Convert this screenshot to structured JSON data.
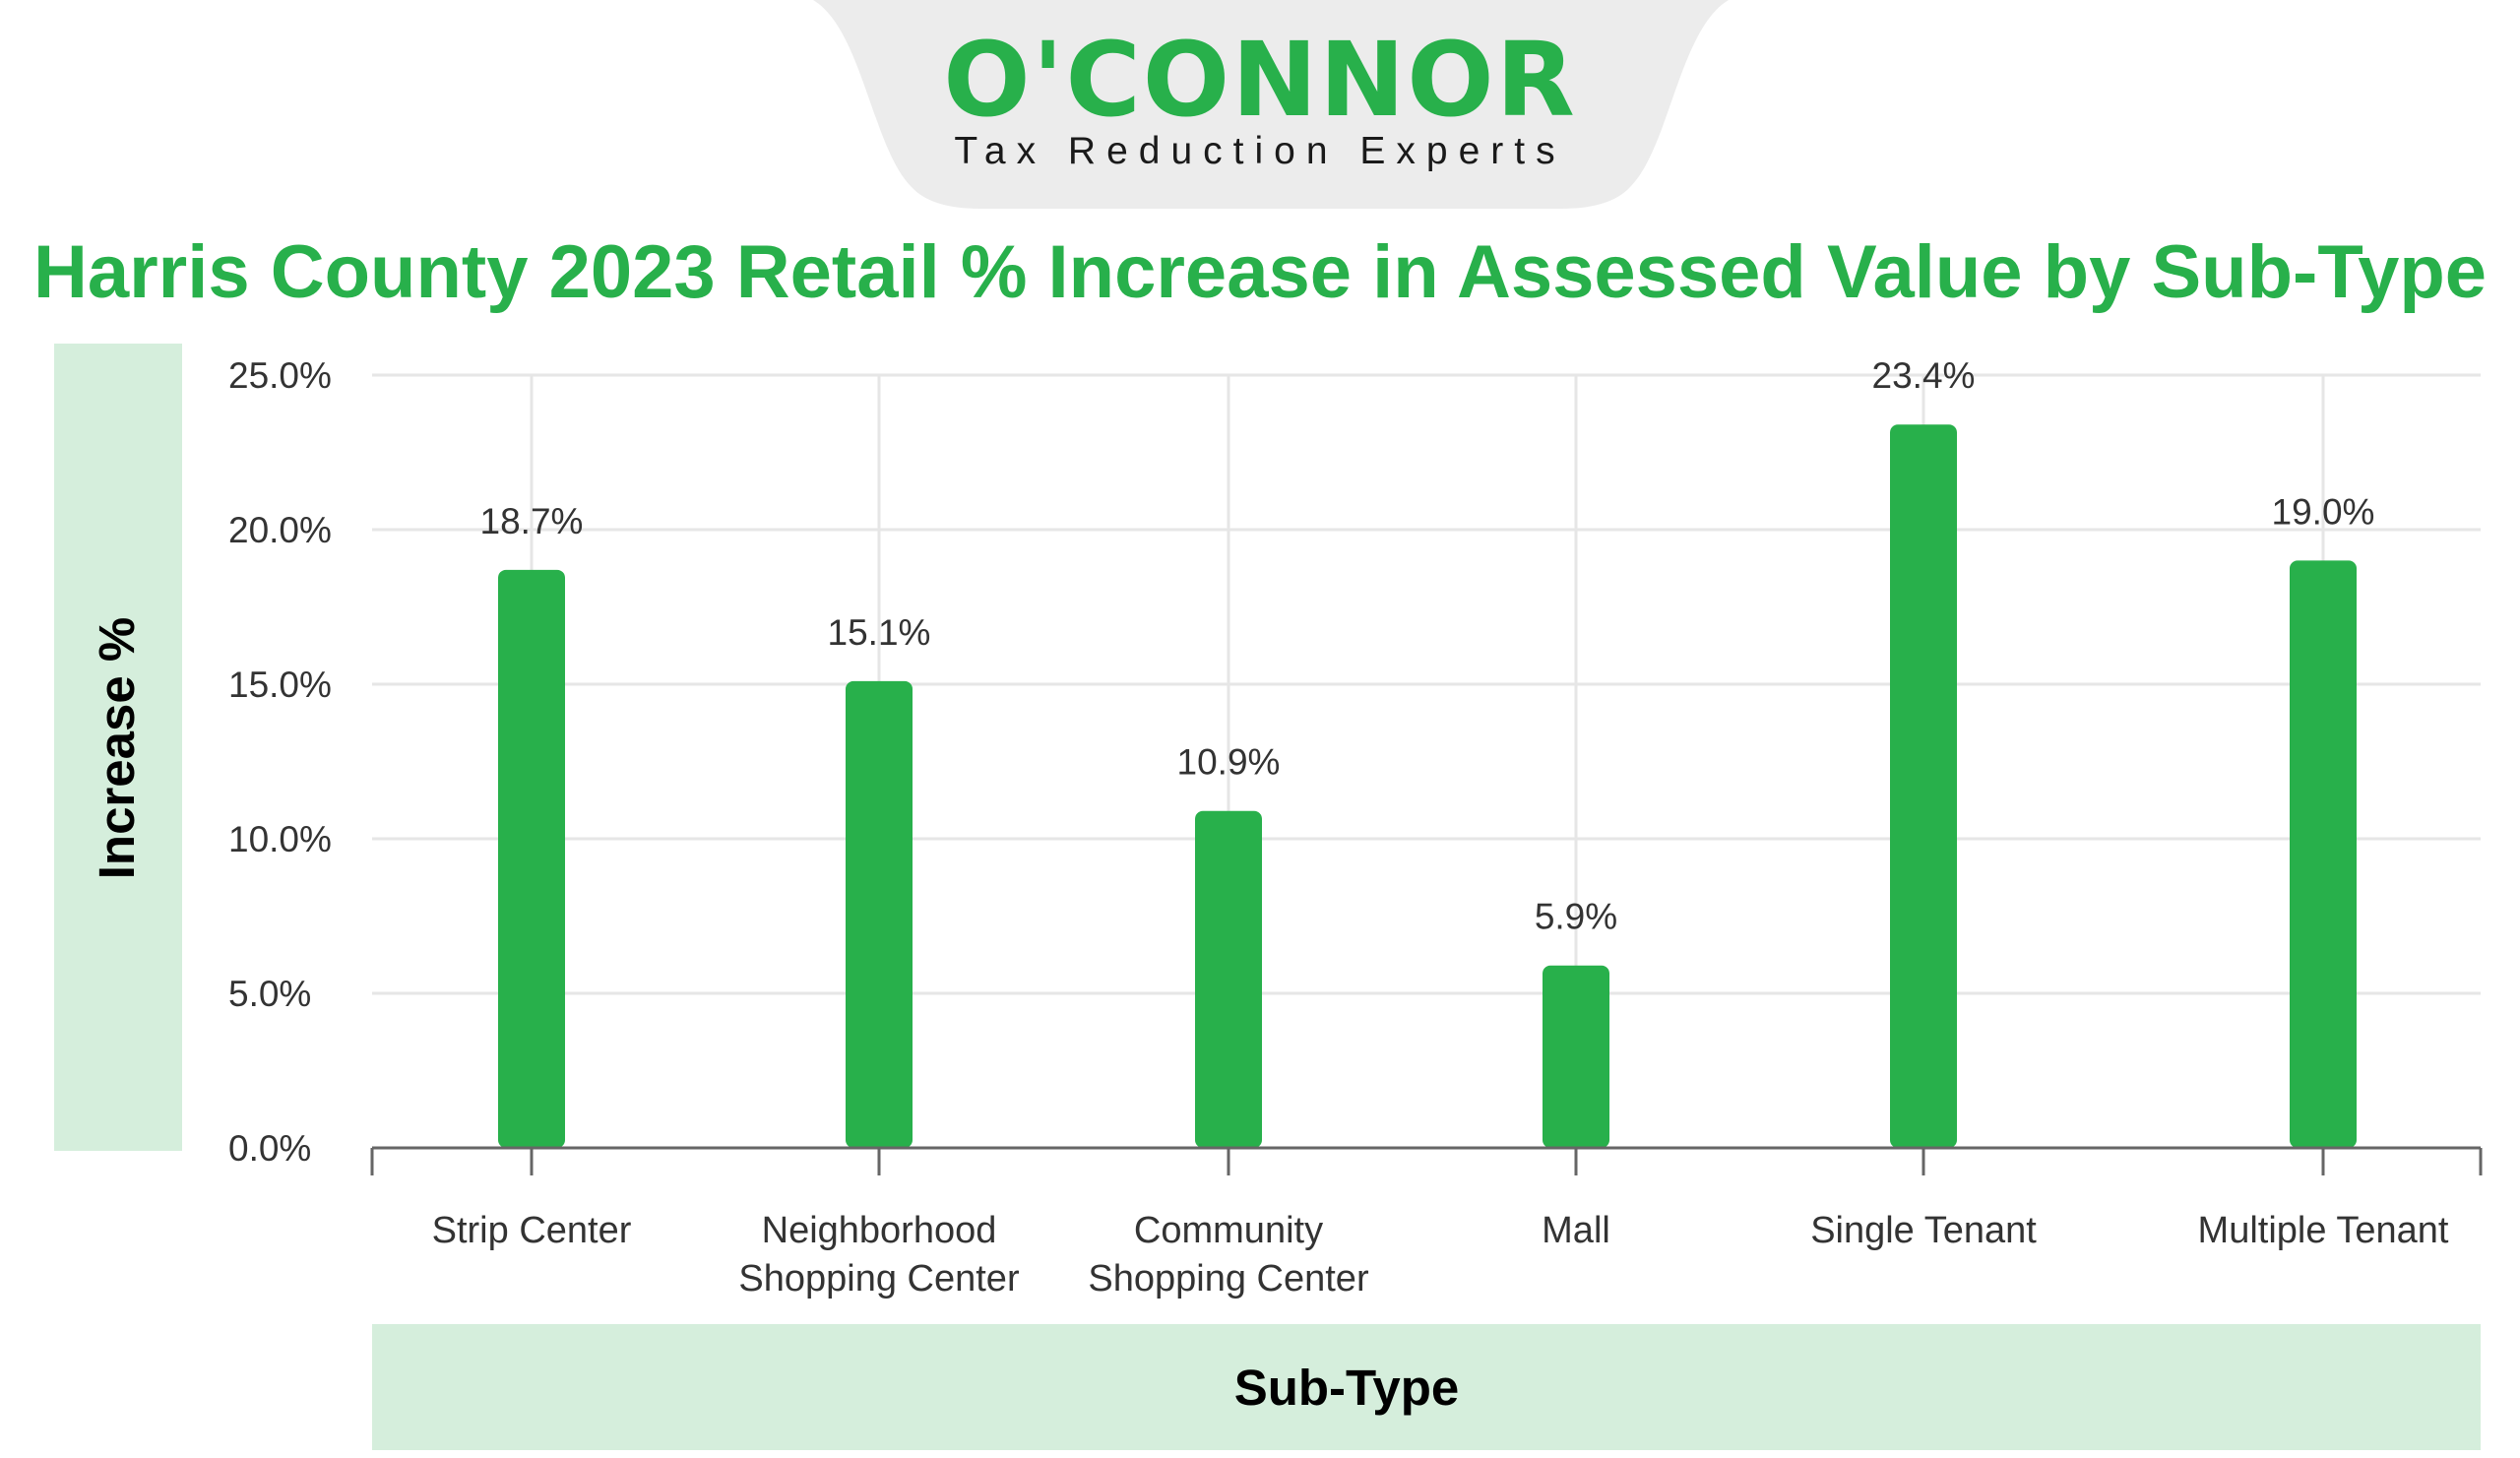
{
  "brand": {
    "logo_text": "O'CONNOR",
    "tagline": "Tax Reduction Experts",
    "accent_color": "#28b04b",
    "band_color": "#d5eedc",
    "tab_color": "#ececec"
  },
  "chart_data": {
    "type": "bar",
    "title": "Harris County 2023 Retail % Increase in Assessed Value by Sub-Type",
    "xlabel": "Sub-Type",
    "ylabel": "Increase %",
    "categories": [
      "Strip Center",
      "Neighborhood Shopping Center",
      "Community Shopping Center",
      "Mall",
      "Single Tenant",
      "Multiple Tenant"
    ],
    "category_label_lines": [
      [
        "Strip Center"
      ],
      [
        "Neighborhood",
        "Shopping Center"
      ],
      [
        "Community",
        "Shopping Center"
      ],
      [
        "Mall"
      ],
      [
        "Single Tenant"
      ],
      [
        "Multiple Tenant"
      ]
    ],
    "values": [
      18.7,
      15.1,
      10.9,
      5.9,
      23.4,
      19.0
    ],
    "value_labels": [
      "18.7%",
      "15.1%",
      "10.9%",
      "5.9%",
      "23.4%",
      "19.0%"
    ],
    "ylim": [
      0,
      25
    ],
    "yticks": [
      0,
      5,
      10,
      15,
      20,
      25
    ],
    "ytick_labels": [
      "0.0%",
      "5.0%",
      "10.0%",
      "15.0%",
      "20.0%",
      "25.0%"
    ],
    "grid": true,
    "bar_color": "#28b04b"
  }
}
